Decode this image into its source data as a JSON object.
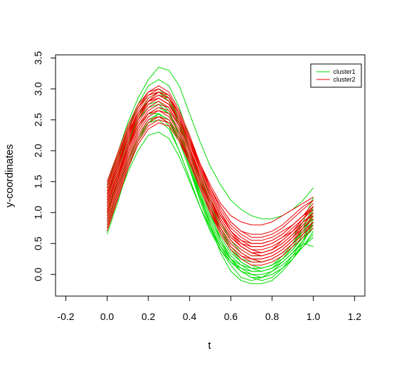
{
  "chart_data": {
    "type": "line",
    "title": "",
    "xlabel": "t",
    "ylabel": "y-coordinates",
    "xlim": [
      -0.25,
      1.25
    ],
    "ylim": [
      -0.35,
      3.55
    ],
    "x_ticks": [
      "-0.2",
      "0.0",
      "0.2",
      "0.4",
      "0.6",
      "0.8",
      "1.0",
      "1.2"
    ],
    "y_ticks": [
      "0.0",
      "0.5",
      "1.0",
      "1.5",
      "2.0",
      "2.5",
      "3.0",
      "3.5"
    ],
    "grid": false,
    "legend_position": "top-right",
    "t": [
      0.0,
      0.05,
      0.1,
      0.15,
      0.2,
      0.25,
      0.3,
      0.35,
      0.4,
      0.45,
      0.5,
      0.55,
      0.6,
      0.65,
      0.7,
      0.75,
      0.8,
      0.85,
      0.9,
      0.95,
      1.0
    ],
    "series": [
      {
        "name": "cluster1",
        "color": "#00dd00",
        "curves": [
          [
            1.45,
            1.95,
            2.45,
            2.85,
            3.15,
            3.35,
            3.3,
            3.05,
            2.6,
            2.15,
            1.75,
            1.45,
            1.2,
            1.05,
            0.95,
            0.9,
            0.9,
            0.95,
            1.05,
            1.2,
            1.4
          ],
          [
            1.35,
            1.85,
            2.35,
            2.75,
            3.05,
            3.15,
            3.05,
            2.7,
            2.2,
            1.7,
            1.25,
            0.85,
            0.55,
            0.35,
            0.25,
            0.2,
            0.25,
            0.35,
            0.5,
            0.75,
            1.05
          ],
          [
            1.3,
            1.8,
            2.3,
            2.7,
            2.95,
            3.0,
            2.85,
            2.5,
            2.0,
            1.5,
            1.0,
            0.55,
            0.25,
            0.05,
            -0.05,
            -0.1,
            -0.05,
            0.1,
            0.3,
            0.55,
            0.9
          ],
          [
            1.0,
            1.55,
            2.1,
            2.55,
            2.85,
            2.95,
            2.8,
            2.4,
            1.85,
            1.3,
            0.8,
            0.35,
            0.05,
            -0.1,
            -0.15,
            -0.15,
            -0.1,
            0.05,
            0.25,
            0.5,
            0.85
          ],
          [
            1.15,
            1.6,
            2.05,
            2.4,
            2.6,
            2.6,
            2.4,
            2.0,
            1.55,
            1.1,
            0.7,
            0.4,
            0.2,
            0.1,
            0.05,
            0.05,
            0.1,
            0.2,
            0.35,
            0.55,
            0.8
          ],
          [
            0.9,
            1.4,
            1.85,
            2.2,
            2.45,
            2.5,
            2.35,
            2.0,
            1.55,
            1.1,
            0.7,
            0.4,
            0.2,
            0.05,
            0.0,
            0.0,
            0.05,
            0.15,
            0.3,
            0.45,
            0.65
          ],
          [
            0.8,
            1.3,
            1.8,
            2.2,
            2.5,
            2.6,
            2.5,
            2.15,
            1.7,
            1.2,
            0.75,
            0.4,
            0.15,
            -0.05,
            -0.1,
            -0.05,
            0.05,
            0.2,
            0.35,
            0.5,
            0.45
          ],
          [
            0.75,
            1.2,
            1.65,
            2.0,
            2.25,
            2.3,
            2.2,
            1.9,
            1.5,
            1.1,
            0.75,
            0.45,
            0.25,
            0.15,
            0.1,
            0.1,
            0.15,
            0.25,
            0.4,
            0.6,
            0.85
          ],
          [
            1.1,
            1.6,
            2.1,
            2.5,
            2.8,
            2.9,
            2.8,
            2.45,
            2.0,
            1.55,
            1.1,
            0.7,
            0.4,
            0.2,
            0.1,
            0.05,
            0.1,
            0.25,
            0.45,
            0.7,
            1.0
          ],
          [
            1.2,
            1.7,
            2.2,
            2.6,
            2.85,
            2.95,
            2.85,
            2.5,
            2.05,
            1.6,
            1.15,
            0.75,
            0.45,
            0.25,
            0.15,
            0.1,
            0.15,
            0.3,
            0.5,
            0.75,
            1.1
          ],
          [
            1.0,
            1.45,
            1.95,
            2.35,
            2.6,
            2.7,
            2.6,
            2.3,
            1.85,
            1.4,
            1.0,
            0.65,
            0.4,
            0.25,
            0.2,
            0.2,
            0.25,
            0.35,
            0.5,
            0.7,
            0.95
          ],
          [
            0.65,
            1.15,
            1.7,
            2.15,
            2.45,
            2.6,
            2.5,
            2.2,
            1.75,
            1.3,
            0.9,
            0.55,
            0.3,
            0.15,
            0.05,
            0.05,
            0.1,
            0.2,
            0.35,
            0.55,
            0.75
          ],
          [
            1.4,
            1.9,
            2.35,
            2.7,
            2.9,
            2.95,
            2.8,
            2.45,
            2.0,
            1.55,
            1.15,
            0.8,
            0.55,
            0.4,
            0.3,
            0.3,
            0.35,
            0.45,
            0.6,
            0.85,
            1.25
          ],
          [
            0.95,
            1.5,
            2.05,
            2.5,
            2.75,
            2.8,
            2.65,
            2.25,
            1.75,
            1.25,
            0.8,
            0.45,
            0.2,
            0.05,
            -0.05,
            -0.05,
            0.0,
            0.1,
            0.25,
            0.45,
            0.7
          ],
          [
            1.25,
            1.7,
            2.15,
            2.5,
            2.7,
            2.75,
            2.6,
            2.25,
            1.8,
            1.35,
            0.95,
            0.6,
            0.35,
            0.2,
            0.1,
            0.1,
            0.15,
            0.25,
            0.4,
            0.65,
            0.95
          ],
          [
            0.85,
            1.3,
            1.8,
            2.2,
            2.45,
            2.55,
            2.45,
            2.15,
            1.7,
            1.25,
            0.85,
            0.5,
            0.25,
            0.1,
            0.0,
            -0.05,
            0.0,
            0.1,
            0.25,
            0.45,
            0.6
          ]
        ]
      },
      {
        "name": "cluster2",
        "color": "#ee0000",
        "curves": [
          [
            1.5,
            1.95,
            2.4,
            2.75,
            2.95,
            3.0,
            2.9,
            2.6,
            2.2,
            1.8,
            1.45,
            1.15,
            0.95,
            0.85,
            0.8,
            0.8,
            0.85,
            0.95,
            1.05,
            1.15,
            1.25
          ],
          [
            1.35,
            1.85,
            2.3,
            2.7,
            2.95,
            3.05,
            2.95,
            2.65,
            2.25,
            1.8,
            1.4,
            1.05,
            0.8,
            0.65,
            0.55,
            0.55,
            0.6,
            0.7,
            0.8,
            0.95,
            1.1
          ],
          [
            1.2,
            1.7,
            2.2,
            2.6,
            2.85,
            2.95,
            2.85,
            2.55,
            2.15,
            1.7,
            1.3,
            0.95,
            0.7,
            0.55,
            0.45,
            0.45,
            0.5,
            0.6,
            0.75,
            0.9,
            1.05
          ],
          [
            1.1,
            1.6,
            2.1,
            2.5,
            2.75,
            2.85,
            2.75,
            2.45,
            2.05,
            1.6,
            1.2,
            0.85,
            0.6,
            0.45,
            0.35,
            0.35,
            0.4,
            0.5,
            0.65,
            0.8,
            1.0
          ],
          [
            1.0,
            1.5,
            2.0,
            2.4,
            2.65,
            2.75,
            2.7,
            2.4,
            2.0,
            1.55,
            1.15,
            0.8,
            0.55,
            0.4,
            0.3,
            0.3,
            0.35,
            0.45,
            0.6,
            0.75,
            0.9
          ],
          [
            0.9,
            1.4,
            1.9,
            2.3,
            2.55,
            2.65,
            2.6,
            2.35,
            1.95,
            1.5,
            1.1,
            0.75,
            0.5,
            0.35,
            0.25,
            0.25,
            0.3,
            0.4,
            0.55,
            0.7,
            0.85
          ],
          [
            0.8,
            1.3,
            1.8,
            2.2,
            2.45,
            2.55,
            2.5,
            2.25,
            1.85,
            1.45,
            1.05,
            0.7,
            0.45,
            0.3,
            0.2,
            0.2,
            0.25,
            0.35,
            0.5,
            0.65,
            0.8
          ],
          [
            0.7,
            1.2,
            1.7,
            2.1,
            2.35,
            2.45,
            2.4,
            2.15,
            1.8,
            1.4,
            1.0,
            0.65,
            0.4,
            0.25,
            0.15,
            0.15,
            0.2,
            0.3,
            0.45,
            0.6,
            0.75
          ],
          [
            1.4,
            1.9,
            2.35,
            2.7,
            2.9,
            2.95,
            2.85,
            2.6,
            2.2,
            1.8,
            1.4,
            1.1,
            0.85,
            0.7,
            0.6,
            0.6,
            0.65,
            0.75,
            0.9,
            1.05,
            1.2
          ],
          [
            1.3,
            1.75,
            2.2,
            2.55,
            2.8,
            2.9,
            2.8,
            2.5,
            2.1,
            1.7,
            1.3,
            0.95,
            0.7,
            0.5,
            0.4,
            0.4,
            0.45,
            0.55,
            0.7,
            0.9,
            1.1
          ],
          [
            1.15,
            1.65,
            2.15,
            2.55,
            2.8,
            2.9,
            2.85,
            2.55,
            2.15,
            1.7,
            1.3,
            0.95,
            0.7,
            0.55,
            0.5,
            0.5,
            0.55,
            0.65,
            0.8,
            0.95,
            1.15
          ],
          [
            1.05,
            1.55,
            2.05,
            2.45,
            2.7,
            2.8,
            2.7,
            2.4,
            2.0,
            1.6,
            1.2,
            0.9,
            0.65,
            0.5,
            0.45,
            0.45,
            0.5,
            0.6,
            0.7,
            0.85,
            0.95
          ],
          [
            0.95,
            1.45,
            1.95,
            2.35,
            2.6,
            2.7,
            2.65,
            2.4,
            2.0,
            1.6,
            1.2,
            0.85,
            0.6,
            0.45,
            0.35,
            0.3,
            0.35,
            0.45,
            0.6,
            0.75,
            0.9
          ],
          [
            1.25,
            1.75,
            2.25,
            2.65,
            2.9,
            3.0,
            2.9,
            2.6,
            2.2,
            1.75,
            1.35,
            1.0,
            0.75,
            0.6,
            0.5,
            0.5,
            0.55,
            0.65,
            0.8,
            0.95,
            1.05
          ],
          [
            0.85,
            1.35,
            1.85,
            2.25,
            2.5,
            2.55,
            2.45,
            2.2,
            1.8,
            1.4,
            1.0,
            0.7,
            0.45,
            0.3,
            0.25,
            0.25,
            0.3,
            0.4,
            0.55,
            0.75,
            0.95
          ],
          [
            1.45,
            1.9,
            2.3,
            2.6,
            2.8,
            2.85,
            2.75,
            2.5,
            2.15,
            1.75,
            1.4,
            1.1,
            0.85,
            0.7,
            0.65,
            0.65,
            0.7,
            0.8,
            0.95,
            1.1,
            1.2
          ],
          [
            0.75,
            1.25,
            1.75,
            2.15,
            2.4,
            2.5,
            2.45,
            2.2,
            1.85,
            1.45,
            1.05,
            0.75,
            0.5,
            0.35,
            0.25,
            0.2,
            0.25,
            0.35,
            0.5,
            0.65,
            0.85
          ],
          [
            1.0,
            1.5,
            2.05,
            2.5,
            2.8,
            2.95,
            2.9,
            2.6,
            2.2,
            1.75,
            1.35,
            1.0,
            0.7,
            0.5,
            0.4,
            0.35,
            0.4,
            0.5,
            0.65,
            0.85,
            1.0
          ],
          [
            1.15,
            1.6,
            2.05,
            2.4,
            2.6,
            2.65,
            2.55,
            2.3,
            1.9,
            1.5,
            1.15,
            0.85,
            0.6,
            0.45,
            0.35,
            0.35,
            0.4,
            0.55,
            0.7,
            0.9,
            1.1
          ],
          [
            1.3,
            1.8,
            2.25,
            2.6,
            2.8,
            2.85,
            2.75,
            2.45,
            2.05,
            1.65,
            1.25,
            0.9,
            0.65,
            0.45,
            0.35,
            0.3,
            0.35,
            0.45,
            0.6,
            0.8,
            1.0
          ]
        ]
      }
    ]
  }
}
